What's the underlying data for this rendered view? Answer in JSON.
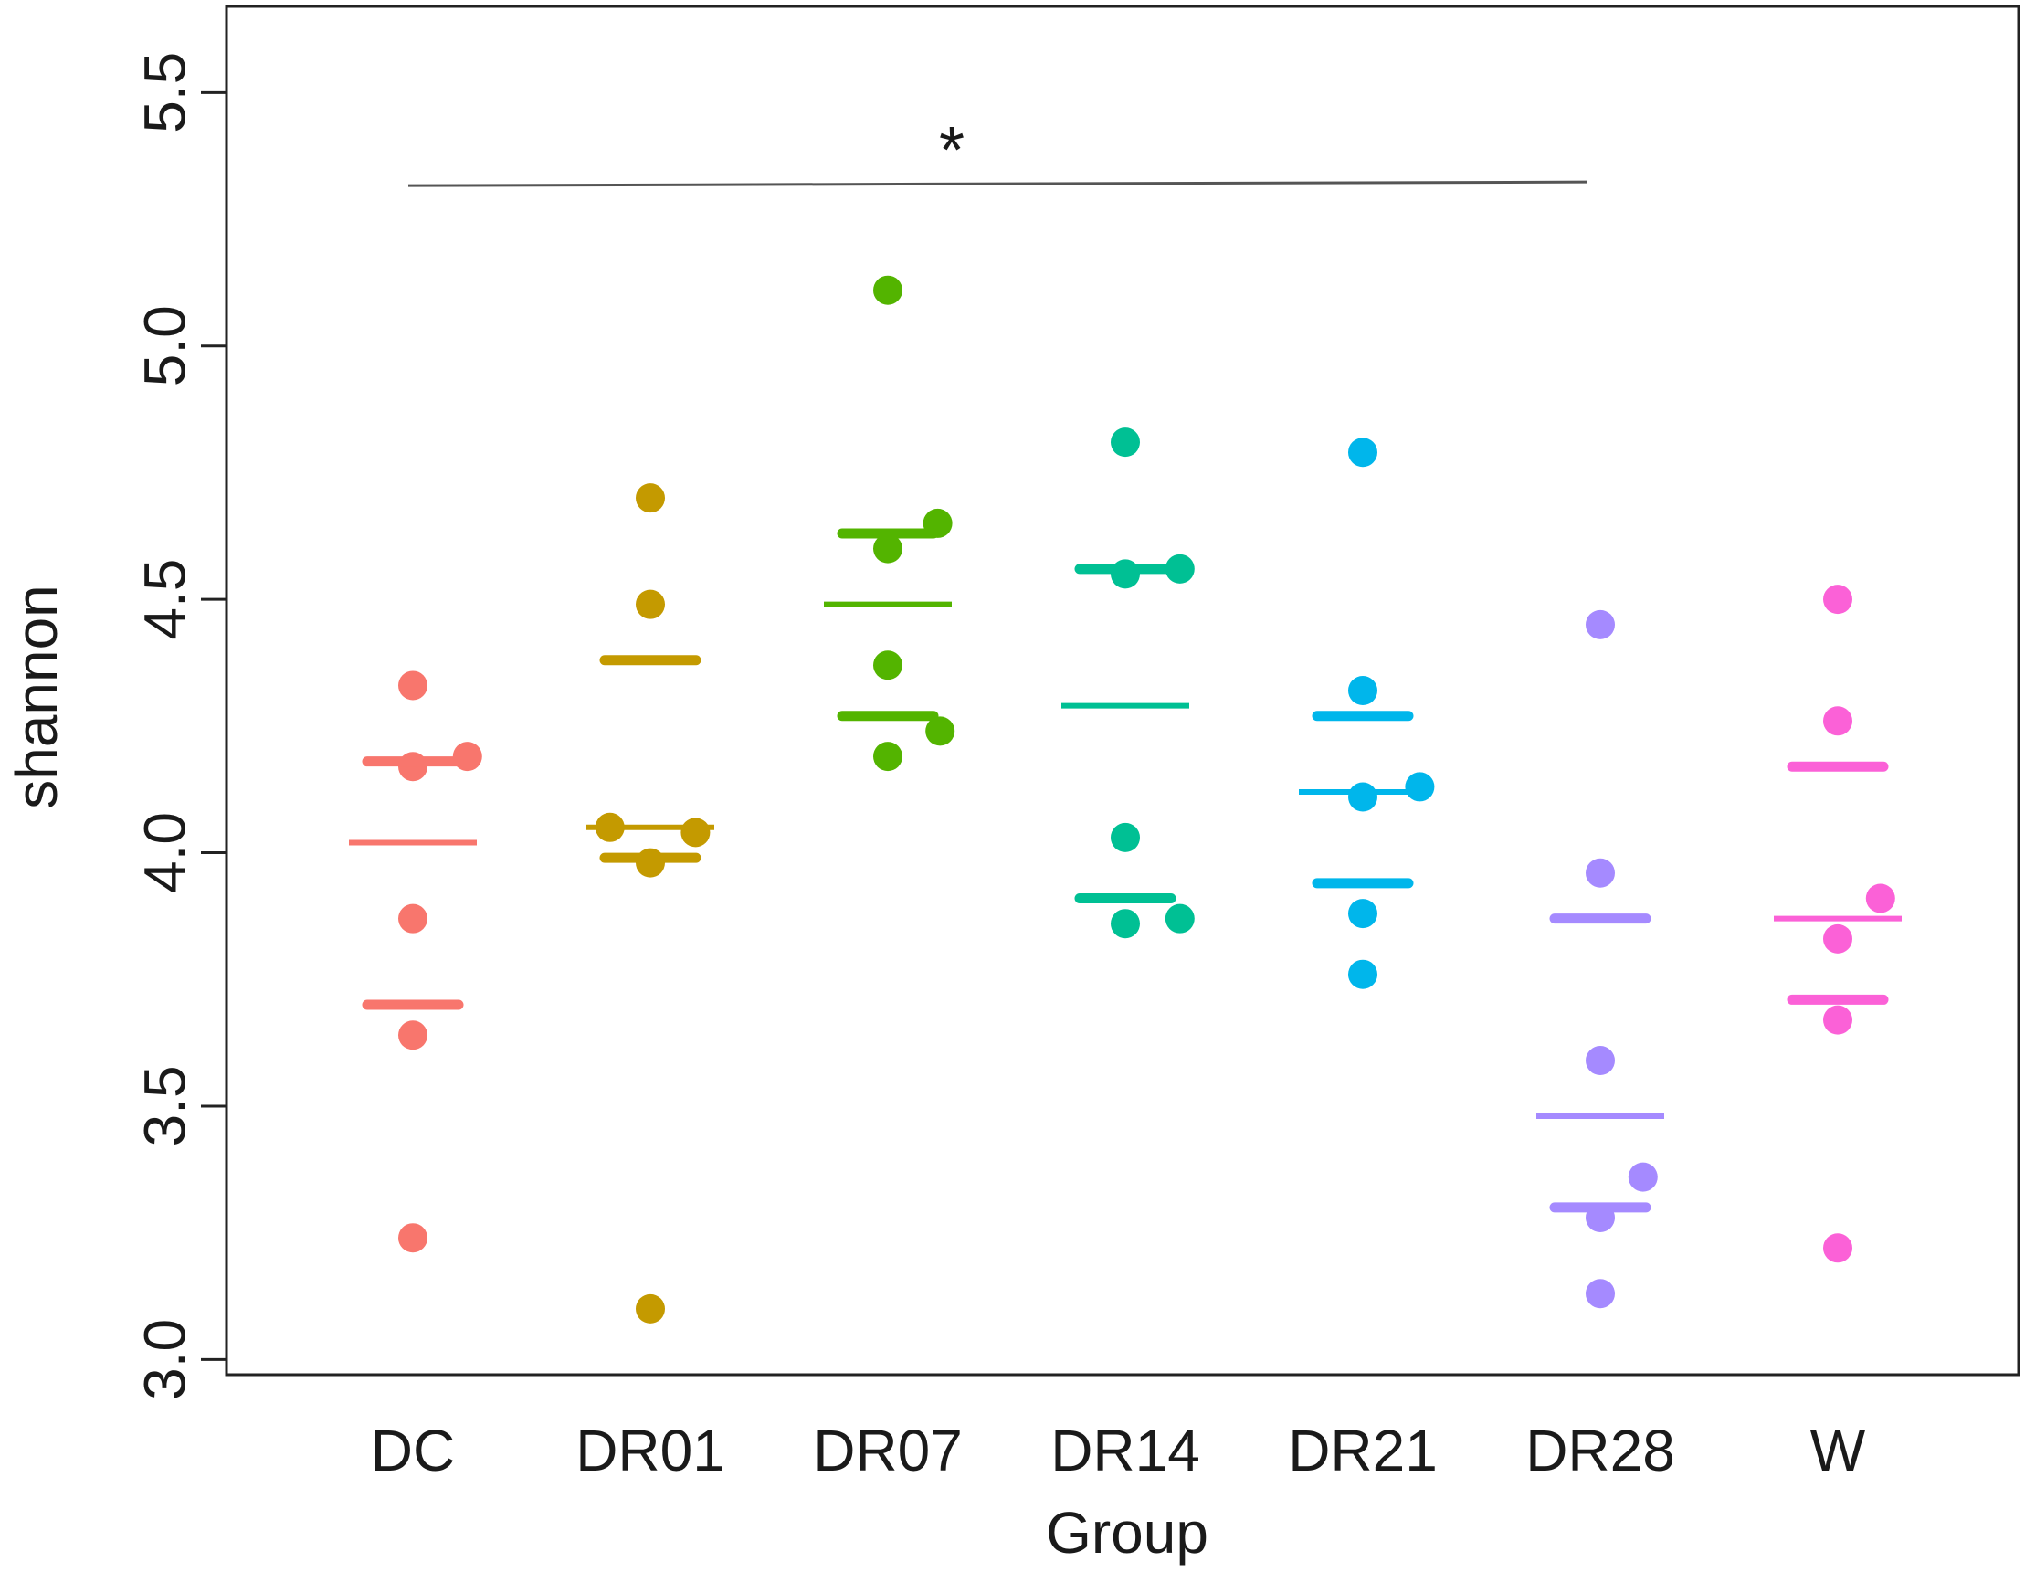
{
  "chart_data": {
    "type": "scatter",
    "xlabel": "Group",
    "ylabel": "shannon",
    "ylim": [
      2.97,
      5.67
    ],
    "yticks": [
      "3.0",
      "3.5",
      "4.0",
      "4.5",
      "5.0",
      "5.5"
    ],
    "grid": false,
    "categories": [
      "DC",
      "DR01",
      "DR07",
      "DR14",
      "DR21",
      "DR28",
      "W"
    ],
    "groups": [
      {
        "name": "DC",
        "color": "#F8766D",
        "points": [
          {
            "dx": 0,
            "y": 4.33
          },
          {
            "dx": 0,
            "y": 4.17
          },
          {
            "dx": 0.23,
            "y": 4.19
          },
          {
            "dx": 0,
            "y": 3.87
          },
          {
            "dx": 0,
            "y": 3.64
          },
          {
            "dx": 0,
            "y": 3.24
          }
        ],
        "mean": 4.02,
        "quartiles": [
          3.7,
          4.18
        ]
      },
      {
        "name": "DR01",
        "color": "#C49A00",
        "points": [
          {
            "dx": 0,
            "y": 4.7
          },
          {
            "dx": 0,
            "y": 4.49
          },
          {
            "dx": -0.17,
            "y": 4.05
          },
          {
            "dx": 0.19,
            "y": 4.04
          },
          {
            "dx": 0,
            "y": 3.98
          },
          {
            "dx": 0,
            "y": 3.1
          }
        ],
        "mean": 4.05,
        "quartiles": [
          3.99,
          4.38
        ]
      },
      {
        "name": "DR07",
        "color": "#53B400",
        "points": [
          {
            "dx": 0,
            "y": 5.11
          },
          {
            "dx": 0.21,
            "y": 4.65
          },
          {
            "dx": 0,
            "y": 4.6
          },
          {
            "dx": 0,
            "y": 4.37
          },
          {
            "dx": 0.22,
            "y": 4.24
          },
          {
            "dx": 0,
            "y": 4.19
          }
        ],
        "mean": 4.49,
        "quartiles": [
          4.27,
          4.63
        ]
      },
      {
        "name": "DR14",
        "color": "#00C094",
        "points": [
          {
            "dx": 0,
            "y": 4.81
          },
          {
            "dx": 0,
            "y": 4.55
          },
          {
            "dx": 0.23,
            "y": 4.56
          },
          {
            "dx": 0,
            "y": 4.03
          },
          {
            "dx": 0,
            "y": 3.86
          },
          {
            "dx": 0.23,
            "y": 3.87
          }
        ],
        "mean": 4.29,
        "quartiles": [
          3.91,
          4.56
        ]
      },
      {
        "name": "DR21",
        "color": "#00B6EB",
        "points": [
          {
            "dx": 0,
            "y": 4.79
          },
          {
            "dx": 0,
            "y": 4.32
          },
          {
            "dx": 0.24,
            "y": 4.13
          },
          {
            "dx": 0,
            "y": 4.11
          },
          {
            "dx": 0,
            "y": 3.88
          },
          {
            "dx": 0,
            "y": 3.76
          }
        ],
        "mean": 4.12,
        "quartiles": [
          3.94,
          4.27
        ]
      },
      {
        "name": "DR28",
        "color": "#A58AFF",
        "points": [
          {
            "dx": 0,
            "y": 4.45
          },
          {
            "dx": 0,
            "y": 3.96
          },
          {
            "dx": 0,
            "y": 3.59
          },
          {
            "dx": 0.18,
            "y": 3.36
          },
          {
            "dx": 0,
            "y": 3.28
          },
          {
            "dx": 0,
            "y": 3.13
          }
        ],
        "mean": 3.48,
        "quartiles": [
          3.3,
          3.87
        ]
      },
      {
        "name": "W",
        "color": "#FB61D7",
        "points": [
          {
            "dx": 0,
            "y": 4.5
          },
          {
            "dx": 0,
            "y": 4.26
          },
          {
            "dx": 0.18,
            "y": 3.91
          },
          {
            "dx": 0,
            "y": 3.83
          },
          {
            "dx": 0,
            "y": 3.67
          },
          {
            "dx": 0,
            "y": 3.22
          }
        ],
        "mean": 3.87,
        "quartiles": [
          3.71,
          4.17
        ]
      }
    ],
    "annotation": {
      "text": "*",
      "from": "DC",
      "to": "DR28",
      "y": 5.32
    }
  }
}
